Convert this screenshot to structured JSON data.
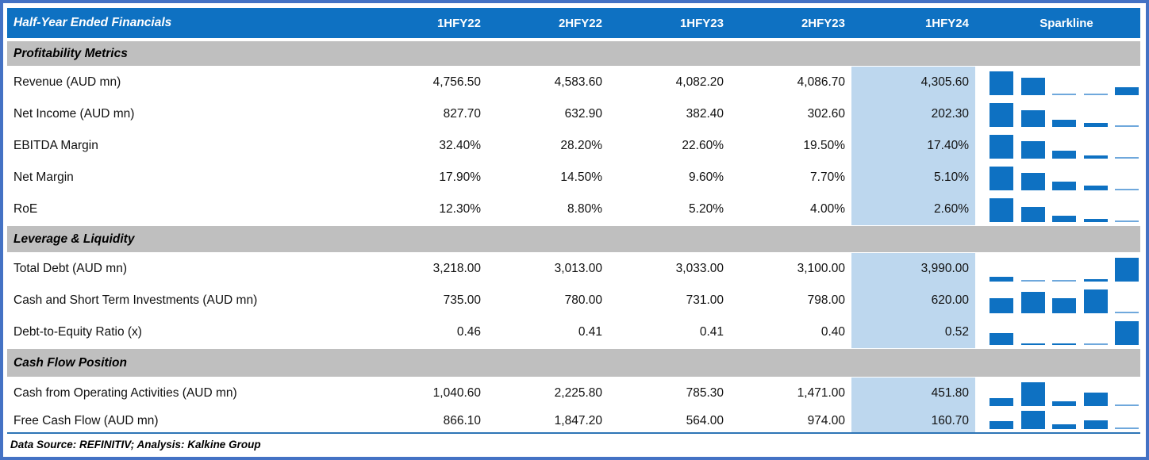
{
  "colors": {
    "frame": "#4472C4",
    "head": "#0E71C2",
    "band": "#BFBFBF",
    "hl": "#BDD7EE",
    "bar": "#0E71C2",
    "barlight": "#6FA8DC",
    "sep": "#2E75B6"
  },
  "chart_data": {
    "type": "table",
    "corner_label": "Half-Year Ended Financials",
    "sparkline_header": "Sparkline",
    "columns": [
      "1HFY22",
      "2HFY22",
      "1HFY23",
      "2HFY23",
      "1HFY24"
    ],
    "highlighted_column": "1HFY24",
    "sparklines": {
      "kind": "column",
      "scale": "per-row min-max",
      "bars_per_row": 5
    },
    "sections": [
      {
        "title": "Profitability Metrics",
        "rows": [
          {
            "label": "Revenue (AUD mn)",
            "values": [
              "4,756.50",
              "4,583.60",
              "4,082.20",
              "4,086.70",
              "4,305.60"
            ],
            "numeric": [
              4756.5,
              4583.6,
              4082.2,
              4086.7,
              4305.6
            ]
          },
          {
            "label": "Net Income (AUD mn)",
            "values": [
              "827.70",
              "632.90",
              "382.40",
              "302.60",
              "202.30"
            ],
            "numeric": [
              827.7,
              632.9,
              382.4,
              302.6,
              202.3
            ]
          },
          {
            "label": "EBITDA Margin",
            "values": [
              "32.40%",
              "28.20%",
              "22.60%",
              "19.50%",
              "17.40%"
            ],
            "numeric": [
              32.4,
              28.2,
              22.6,
              19.5,
              17.4
            ]
          },
          {
            "label": "Net Margin",
            "values": [
              "17.90%",
              "14.50%",
              "9.60%",
              "7.70%",
              "5.10%"
            ],
            "numeric": [
              17.9,
              14.5,
              9.6,
              7.7,
              5.1
            ]
          },
          {
            "label": "RoE",
            "values": [
              "12.30%",
              "8.80%",
              "5.20%",
              "4.00%",
              "2.60%"
            ],
            "numeric": [
              12.3,
              8.8,
              5.2,
              4.0,
              2.6
            ]
          }
        ]
      },
      {
        "title": "Leverage & Liquidity",
        "rows": [
          {
            "label": "Total Debt (AUD mn)",
            "values": [
              "3,218.00",
              "3,013.00",
              "3,033.00",
              "3,100.00",
              "3,990.00"
            ],
            "numeric": [
              3218,
              3013,
              3033,
              3100,
              3990
            ]
          },
          {
            "label": "Cash and Short Term Investments (AUD mn)",
            "values": [
              "735.00",
              "780.00",
              "731.00",
              "798.00",
              "620.00"
            ],
            "numeric": [
              735,
              780,
              731,
              798,
              620
            ]
          },
          {
            "label": "Debt-to-Equity Ratio (x)",
            "values": [
              "0.46",
              "0.41",
              "0.41",
              "0.40",
              "0.52"
            ],
            "numeric": [
              0.46,
              0.41,
              0.41,
              0.4,
              0.52
            ]
          }
        ]
      },
      {
        "title": "Cash Flow Position",
        "rows": [
          {
            "label": "Cash from Operating Activities (AUD mn)",
            "values": [
              "1,040.60",
              "2,225.80",
              "785.30",
              "1,471.00",
              "451.80"
            ],
            "numeric": [
              1040.6,
              2225.8,
              785.3,
              1471.0,
              451.8
            ]
          },
          {
            "label": "Free Cash Flow (AUD mn)",
            "values": [
              "866.10",
              "1,847.20",
              "564.00",
              "974.00",
              "160.70"
            ],
            "numeric": [
              866.1,
              1847.2,
              564.0,
              974.0,
              160.7
            ]
          }
        ]
      }
    ]
  },
  "footer": {
    "text": "Data Source: REFINITIV; Analysis: Kalkine Group"
  }
}
